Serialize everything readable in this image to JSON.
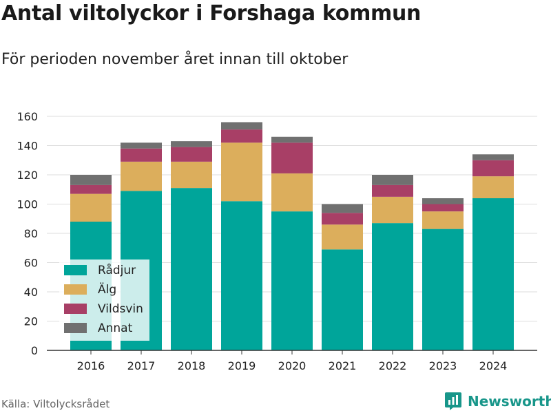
{
  "chart_data": {
    "type": "bar",
    "stacked": true,
    "title": "Antal viltolyckor i Forshaga kommun",
    "subtitle": "För perioden november året innan till oktober",
    "categories": [
      "2016",
      "2017",
      "2018",
      "2019",
      "2020",
      "2021",
      "2022",
      "2023",
      "2024"
    ],
    "series": [
      {
        "name": "Rådjur",
        "color": "#00a59a",
        "values": [
          88,
          109,
          111,
          102,
          95,
          69,
          87,
          83,
          104
        ]
      },
      {
        "name": "Älg",
        "color": "#dcae5c",
        "values": [
          19,
          20,
          18,
          40,
          26,
          17,
          18,
          12,
          15
        ]
      },
      {
        "name": "Vildsvin",
        "color": "#a83f66",
        "values": [
          6,
          9,
          10,
          9,
          21,
          8,
          8,
          5,
          11
        ]
      },
      {
        "name": "Annat",
        "color": "#707070",
        "values": [
          7,
          4,
          4,
          5,
          4,
          6,
          7,
          4,
          4
        ]
      }
    ],
    "ylim": [
      0,
      160
    ],
    "yticks": [
      0,
      20,
      40,
      60,
      80,
      100,
      120,
      140,
      160
    ],
    "grid": true,
    "legend_position": "bottom-left",
    "source": "Källa: Viltolycksrådet",
    "brand": "Newsworthy"
  }
}
